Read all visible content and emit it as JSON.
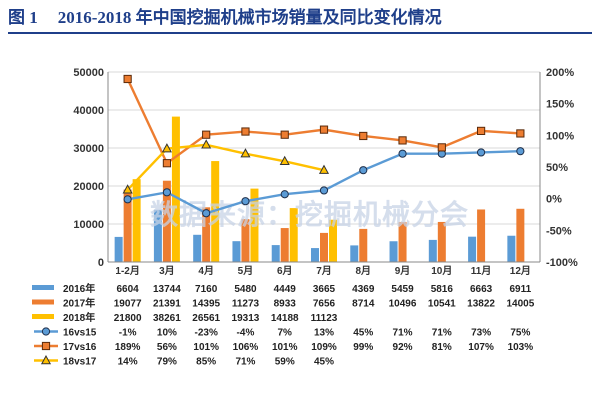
{
  "figure": {
    "label": "图 1",
    "title": "2016-2018 年中国挖掘机械市场销量及同比变化情况"
  },
  "watermark": "数据来源：挖掘机械分会",
  "colors": {
    "s2016": "#5b9bd5",
    "s2017": "#ed7d31",
    "s2018": "#ffc000",
    "g16": "#5b9bd5",
    "g17": "#ed7d31",
    "g18": "#ffc000",
    "title": "#1f3f8a"
  },
  "chart_data": {
    "type": "bar",
    "title": "2016-2018 年中国挖掘机械市场销量及同比变化情况",
    "categories": [
      "1-2月",
      "3月",
      "4月",
      "5月",
      "6月",
      "7月",
      "8月",
      "9月",
      "10月",
      "11月",
      "12月"
    ],
    "y_left": {
      "ylim": [
        0,
        50000
      ],
      "ticks": [
        0,
        10000,
        20000,
        30000,
        40000,
        50000
      ],
      "tick_labels": [
        "0",
        "10000",
        "20000",
        "30000",
        "40000",
        "50000"
      ]
    },
    "y_right": {
      "ylim": [
        -100,
        200
      ],
      "ticks": [
        -100,
        -50,
        0,
        50,
        100,
        150,
        200
      ],
      "tick_labels": [
        "-100%",
        "-50%",
        "0%",
        "50%",
        "100%",
        "150%",
        "200%"
      ]
    },
    "bar_series": [
      {
        "name": "2016年",
        "key": "s2016",
        "values": [
          6604,
          13744,
          7160,
          5480,
          4449,
          3665,
          4369,
          5459,
          5816,
          6663,
          6911
        ],
        "labels": [
          "6604",
          "13744",
          "7160",
          "5480",
          "4449",
          "3665",
          "4369",
          "5459",
          "5816",
          "6663",
          "6911"
        ]
      },
      {
        "name": "2017年",
        "key": "s2017",
        "values": [
          19077,
          21391,
          14395,
          11273,
          8933,
          7656,
          8714,
          10496,
          10541,
          13822,
          14005
        ],
        "labels": [
          "19077",
          "21391",
          "14395",
          "11273",
          "8933",
          "7656",
          "8714",
          "10496",
          "10541",
          "13822",
          "14005"
        ]
      },
      {
        "name": "2018年",
        "key": "s2018",
        "values": [
          21800,
          38261,
          26561,
          19313,
          14188,
          11123,
          null,
          null,
          null,
          null,
          null
        ],
        "labels": [
          "21800",
          "38261",
          "26561",
          "19313",
          "14188",
          "11123",
          "",
          "",
          "",
          "",
          ""
        ]
      }
    ],
    "line_series": [
      {
        "name": "16vs15",
        "key": "g16",
        "marker": "circle",
        "values": [
          -1,
          10,
          -23,
          -4,
          7,
          13,
          45,
          71,
          71,
          73,
          75
        ],
        "labels": [
          "-1%",
          "10%",
          "-23%",
          "-4%",
          "7%",
          "13%",
          "45%",
          "71%",
          "71%",
          "73%",
          "75%"
        ]
      },
      {
        "name": "17vs16",
        "key": "g17",
        "marker": "square",
        "values": [
          189,
          56,
          101,
          106,
          101,
          109,
          99,
          92,
          81,
          107,
          103
        ],
        "labels": [
          "189%",
          "56%",
          "101%",
          "106%",
          "101%",
          "109%",
          "99%",
          "92%",
          "81%",
          "107%",
          "103%"
        ]
      },
      {
        "name": "18vs17",
        "key": "g18",
        "marker": "triangle",
        "values": [
          14,
          79,
          85,
          71,
          59,
          45,
          null,
          null,
          null,
          null,
          null
        ],
        "labels": [
          "14%",
          "79%",
          "85%",
          "71%",
          "59%",
          "45%",
          "",
          "",
          "",
          "",
          ""
        ]
      }
    ],
    "grid": true,
    "legend": "data-table-below"
  }
}
